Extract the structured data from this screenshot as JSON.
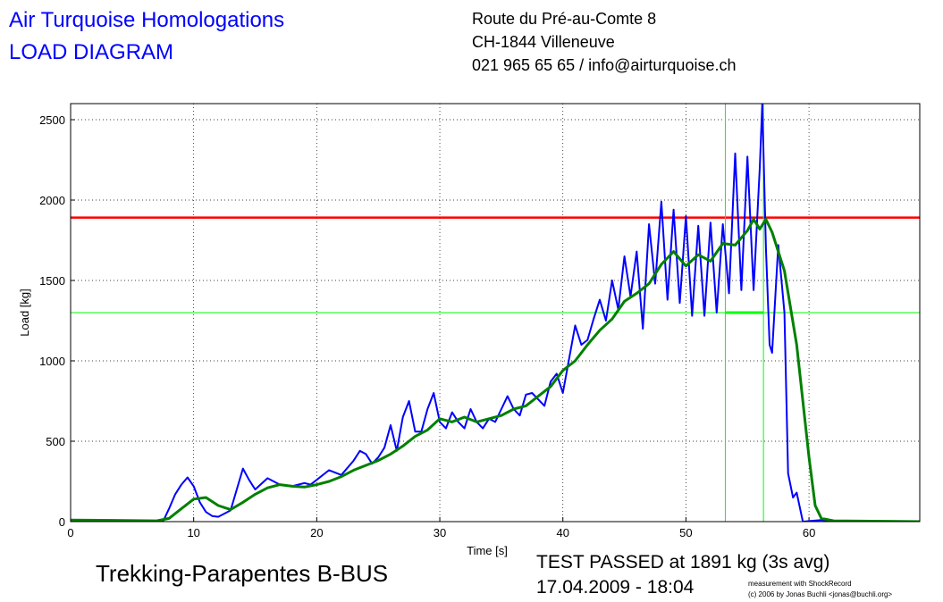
{
  "chart_data": {
    "type": "line",
    "title": "Air Turquoise Homologations",
    "subtitle": "LOAD DIAGRAM",
    "address": [
      "Route du Pré-au-Comte 8",
      "CH-1844 Villeneuve",
      "021 965 65 65 / info@airturquoise.ch"
    ],
    "product": "Trekking-Parapentes B-BUS",
    "result": "TEST PASSED at 1891 kg (3s avg)",
    "date": "17.04.2009 - 18:04",
    "credits": [
      "measurement with ShockRecord",
      "(c) 2006 by Jonas Buchli <jonas@buchli.org>"
    ],
    "xlabel": "Time [s]",
    "ylabel": "Load [kg]",
    "xlim": [
      0,
      69
    ],
    "ylim": [
      0,
      2600
    ],
    "xticks": [
      0,
      10,
      20,
      30,
      40,
      50,
      60
    ],
    "yticks": [
      0,
      500,
      1000,
      1500,
      2000,
      2500
    ],
    "grid": true,
    "series": [
      {
        "color": "#0000ff",
        "x": [
          0,
          7,
          7.5,
          8,
          8.5,
          9,
          9.5,
          10,
          10.5,
          11,
          11.5,
          12,
          13,
          13.5,
          14,
          14.5,
          15,
          16,
          16.5,
          17,
          18,
          19,
          19.5,
          20,
          21,
          22,
          23,
          23.5,
          24,
          24.5,
          25,
          25.5,
          26,
          26.5,
          27,
          27.5,
          28,
          28.5,
          29,
          29.5,
          30,
          30.5,
          31,
          31.5,
          32,
          32.5,
          33,
          33.5,
          34,
          34.5,
          35,
          35.5,
          36,
          36.5,
          37,
          37.5,
          38,
          38.5,
          39,
          39.5,
          40,
          41,
          41.5,
          42,
          42.5,
          43,
          43.5,
          44,
          44.5,
          45,
          45.5,
          46,
          46.5,
          47,
          47.5,
          48,
          48.5,
          49,
          49.5,
          50,
          50.5,
          51,
          51.5,
          52,
          52.5,
          53,
          53.5,
          54,
          54.5,
          55,
          55.5,
          56,
          56.2,
          56.5,
          56.8,
          57,
          57.5,
          58,
          58.3,
          58.7,
          59,
          59.5,
          61,
          62,
          69
        ],
        "values": [
          10,
          5,
          0,
          80,
          170,
          230,
          275,
          220,
          120,
          60,
          35,
          30,
          70,
          200,
          330,
          260,
          200,
          270,
          250,
          230,
          220,
          240,
          230,
          260,
          320,
          290,
          380,
          440,
          420,
          360,
          400,
          460,
          600,
          440,
          650,
          750,
          560,
          560,
          700,
          800,
          620,
          580,
          680,
          620,
          580,
          700,
          620,
          580,
          640,
          620,
          700,
          780,
          700,
          660,
          790,
          800,
          760,
          720,
          870,
          920,
          800,
          1220,
          1100,
          1130,
          1260,
          1380,
          1250,
          1500,
          1320,
          1650,
          1400,
          1680,
          1200,
          1850,
          1480,
          1990,
          1380,
          1940,
          1360,
          1900,
          1280,
          1840,
          1280,
          1860,
          1300,
          1850,
          1420,
          2290,
          1440,
          2270,
          1440,
          2200,
          2600,
          1700,
          1100,
          1050,
          1720,
          1300,
          300,
          150,
          180,
          0,
          10,
          0,
          0
        ]
      },
      {
        "color": "#008000",
        "x": [
          0,
          7,
          8,
          9,
          10,
          11,
          12,
          13,
          14,
          15,
          16,
          17,
          18,
          19,
          20,
          21,
          22,
          23,
          24,
          25,
          26,
          27,
          28,
          29,
          30,
          31,
          32,
          33,
          34,
          35,
          36,
          37,
          38,
          39,
          40,
          41,
          42,
          43,
          44,
          45,
          46,
          47,
          48,
          49,
          50,
          51,
          52,
          53,
          54,
          55,
          55.5,
          56,
          56.5,
          57,
          58,
          59,
          60,
          60.5,
          61,
          62,
          69
        ],
        "values": [
          10,
          5,
          20,
          80,
          140,
          150,
          100,
          75,
          120,
          170,
          210,
          230,
          220,
          215,
          230,
          250,
          280,
          320,
          350,
          380,
          420,
          470,
          530,
          570,
          640,
          620,
          650,
          620,
          640,
          660,
          700,
          720,
          780,
          840,
          940,
          1000,
          1100,
          1190,
          1260,
          1370,
          1420,
          1480,
          1600,
          1680,
          1590,
          1660,
          1620,
          1730,
          1720,
          1810,
          1880,
          1820,
          1880,
          1800,
          1560,
          1100,
          400,
          100,
          20,
          5,
          0
        ]
      }
    ],
    "reference_lines": [
      {
        "axis": "y",
        "value": 1891,
        "color": "#ff0000"
      },
      {
        "axis": "y",
        "value": 1300,
        "color": "#00ff00"
      },
      {
        "axis": "x",
        "value": 53.2,
        "color": "#00ff00"
      },
      {
        "axis": "x",
        "value": 56.3,
        "color": "#00ff00"
      }
    ],
    "highlight": {
      "x": [
        53.2,
        56.3
      ],
      "y": 1300,
      "color": "#00ff00"
    }
  }
}
